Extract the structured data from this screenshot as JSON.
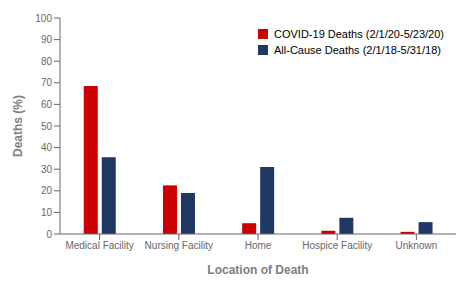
{
  "chart_data": {
    "type": "bar",
    "categories": [
      "Medical Facility",
      "Nursing Facility",
      "Home",
      "Hospice Facility",
      "Unknown"
    ],
    "series": [
      {
        "name": "COVID-19 Deaths (2/1/20-5/23/20)",
        "color": "#CC0000",
        "values": [
          68.5,
          22.5,
          5.0,
          1.5,
          1.0
        ]
      },
      {
        "name": "All-Cause Deaths (2/1/18-5/31/18)",
        "color": "#1F3864",
        "values": [
          35.5,
          19.0,
          31.0,
          7.5,
          5.5
        ]
      }
    ],
    "xlabel": "Location of Death",
    "ylabel": "Deaths (%)",
    "ylim": [
      0,
      100
    ],
    "yticks": [
      0,
      10,
      20,
      30,
      40,
      50,
      60,
      70,
      80,
      90,
      100
    ],
    "grid": false,
    "legend": "upper right"
  }
}
